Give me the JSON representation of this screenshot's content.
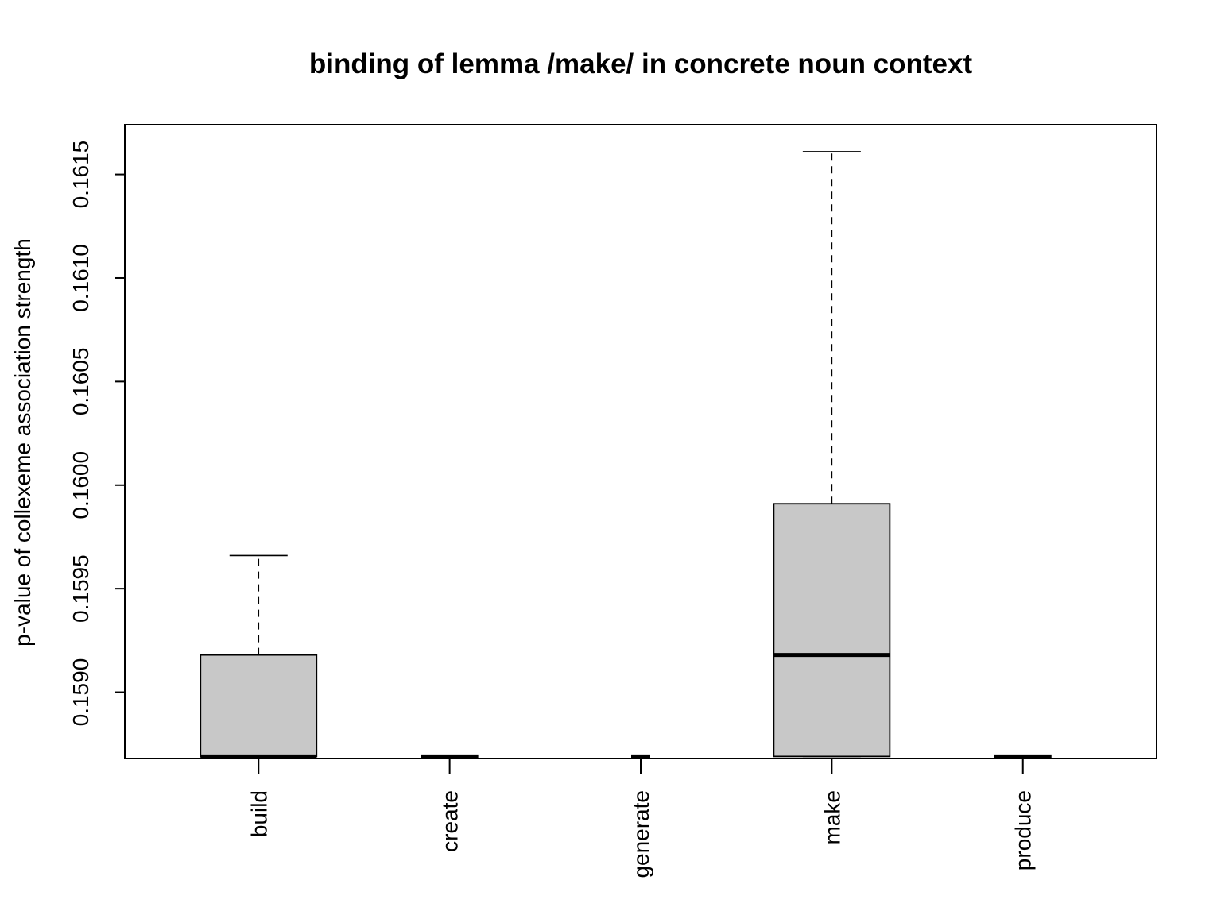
{
  "chart_data": {
    "type": "boxplot",
    "title": "binding of lemma /make/ in concrete noun context",
    "xlabel": "",
    "ylabel": "p-value of collexeme association strength",
    "ylim": [
      0.15868,
      0.16174
    ],
    "yticks": [
      0.159,
      0.1595,
      0.16,
      0.1605,
      0.161,
      0.1615
    ],
    "ytick_labels": [
      "0.1590",
      "0.1595",
      "0.1600",
      "0.1605",
      "0.1610",
      "0.1615"
    ],
    "categories": [
      "build",
      "create",
      "generate",
      "make",
      "produce"
    ],
    "boxes": [
      {
        "name": "build",
        "min": 0.15869,
        "q1": 0.15869,
        "median": 0.15869,
        "q3": 0.15918,
        "max": 0.15966,
        "box_width": "wide"
      },
      {
        "name": "create",
        "min": 0.15869,
        "q1": 0.15869,
        "median": 0.15869,
        "q3": 0.15869,
        "max": 0.15869,
        "box_width": "medium"
      },
      {
        "name": "generate",
        "min": 0.15869,
        "q1": 0.15869,
        "median": 0.15869,
        "q3": 0.15869,
        "max": 0.15869,
        "box_width": "narrow"
      },
      {
        "name": "make",
        "min": 0.15869,
        "q1": 0.15869,
        "median": 0.15918,
        "q3": 0.15991,
        "max": 0.16161,
        "box_width": "wide"
      },
      {
        "name": "produce",
        "min": 0.15869,
        "q1": 0.15869,
        "median": 0.15869,
        "q3": 0.15869,
        "max": 0.15869,
        "box_width": "medium"
      }
    ],
    "box_fill": "#c8c8c8",
    "grid": false,
    "legend": "none"
  }
}
